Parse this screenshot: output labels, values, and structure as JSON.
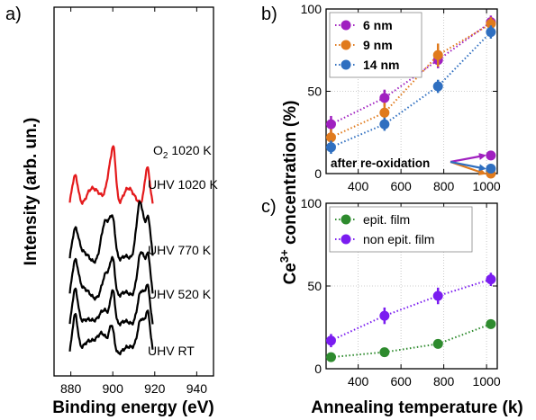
{
  "chart_data": [
    {
      "panel_label": "a)",
      "type": "line",
      "xlabel": "Binding energy (eV)",
      "ylabel": "Intensity (arb. un.)",
      "xlim": [
        872,
        948
      ],
      "xticks": [
        880,
        900,
        920,
        940
      ],
      "yticks": [],
      "series": [
        {
          "name": "O2 1020 K",
          "label_main": "O",
          "label_sub": "2",
          "label_rest": " 1020 K",
          "color": "#e41a1c",
          "offset": 4.3,
          "peaks": [
            [
              882,
              1.0,
              1.5
            ],
            [
              889.5,
              0.55,
              2.5
            ],
            [
              894,
              0.35,
              2.5
            ],
            [
              898.5,
              1.0,
              1.5
            ],
            [
              900.5,
              1.35,
              1.1
            ],
            [
              907,
              0.55,
              2.5
            ],
            [
              911,
              0.2,
              3
            ],
            [
              916.5,
              1.2,
              1.3
            ]
          ]
        },
        {
          "name": "UHV 1020 K",
          "color": "#000000",
          "offset": 2.55,
          "peaks": [
            [
              882,
              0.95,
              1.6
            ],
            [
              886,
              0.5,
              3.5
            ],
            [
              896.5,
              1.4,
              2.2
            ],
            [
              900,
              1.1,
              1.3
            ],
            [
              906,
              0.4,
              3
            ],
            [
              913,
              1.95,
              1.8
            ],
            [
              917,
              1.35,
              1.3
            ]
          ]
        },
        {
          "name": "UHV 770 K",
          "color": "#000000",
          "offset": 1.55,
          "peaks": [
            [
              882,
              1.05,
              1.5
            ],
            [
              886,
              0.45,
              3.5
            ],
            [
              897,
              0.9,
              2.2
            ],
            [
              900,
              0.95,
              1.1
            ],
            [
              906,
              0.35,
              3
            ],
            [
              913.5,
              1.5,
              1.8
            ],
            [
              917,
              1.2,
              1.2
            ]
          ]
        },
        {
          "name": "UHV 520 K",
          "color": "#000000",
          "offset": 0.75,
          "peaks": [
            [
              882,
              1.15,
              1.4
            ],
            [
              888,
              0.35,
              3.5
            ],
            [
              896,
              0.6,
              2.5
            ],
            [
              900,
              1.0,
              1.1
            ],
            [
              906,
              0.3,
              3
            ],
            [
              913.5,
              1.15,
              1.8
            ],
            [
              916.8,
              1.1,
              1.2
            ]
          ]
        },
        {
          "name": "UHV RT",
          "color": "#000000",
          "offset": 0.0,
          "peaks": [
            [
              882,
              1.2,
              1.3
            ],
            [
              888.5,
              0.45,
              3
            ],
            [
              895,
              0.65,
              2.5
            ],
            [
              899.5,
              0.8,
              1.2
            ],
            [
              907.5,
              0.3,
              3
            ],
            [
              913.5,
              1.05,
              1.7
            ],
            [
              916.8,
              1.15,
              1.2
            ]
          ]
        }
      ]
    },
    {
      "panel_label": "b)",
      "type": "line",
      "xlabel": "",
      "ylabel": "",
      "xlim": [
        250,
        1050
      ],
      "ylim": [
        0,
        100
      ],
      "xticks": [
        400,
        600,
        800,
        1000
      ],
      "yticks": [
        0,
        50,
        100
      ],
      "grid": true,
      "legend_position": "top-left",
      "series": [
        {
          "name": "6 nm",
          "color": "#a020c0",
          "x": [
            273,
            523,
            773,
            1020
          ],
          "y": [
            30,
            46,
            69,
            92
          ],
          "yerr": [
            5,
            5,
            5,
            4
          ]
        },
        {
          "name": "9 nm",
          "color": "#e07a1c",
          "x": [
            273,
            523,
            773,
            1020
          ],
          "y": [
            22,
            37,
            72,
            91
          ],
          "yerr": [
            5,
            6,
            7,
            4
          ]
        },
        {
          "name": "14 nm",
          "color": "#2f6fc0",
          "x": [
            273,
            523,
            773,
            1020
          ],
          "y": [
            16,
            30,
            53,
            86
          ],
          "yerr": [
            4,
            4,
            4,
            4
          ]
        }
      ],
      "after_points": {
        "x": 1020,
        "y": [
          11,
          0,
          3
        ]
      },
      "annotation": "after re-oxidation"
    },
    {
      "panel_label": "c)",
      "type": "line",
      "xlabel": "Annealing temperature (k)",
      "ylabel": "",
      "xlim": [
        250,
        1050
      ],
      "ylim": [
        0,
        100
      ],
      "xticks": [
        400,
        600,
        800,
        1000
      ],
      "yticks": [
        0,
        50,
        100
      ],
      "grid": true,
      "legend_position": "top-left",
      "series": [
        {
          "name": "epit. film",
          "color": "#2e8b2e",
          "x": [
            273,
            523,
            773,
            1020
          ],
          "y": [
            7,
            10,
            15,
            27
          ],
          "yerr": [
            1,
            1,
            1,
            1
          ]
        },
        {
          "name": "non epit. film",
          "color": "#7a1cf0",
          "x": [
            273,
            523,
            773,
            1020
          ],
          "y": [
            17,
            32,
            44,
            54
          ],
          "yerr": [
            4,
            5,
            5,
            4
          ]
        }
      ]
    }
  ],
  "shared_ylabel": {
    "main": "Ce",
    "sup": "3+",
    "rest": " concentration (%)"
  }
}
